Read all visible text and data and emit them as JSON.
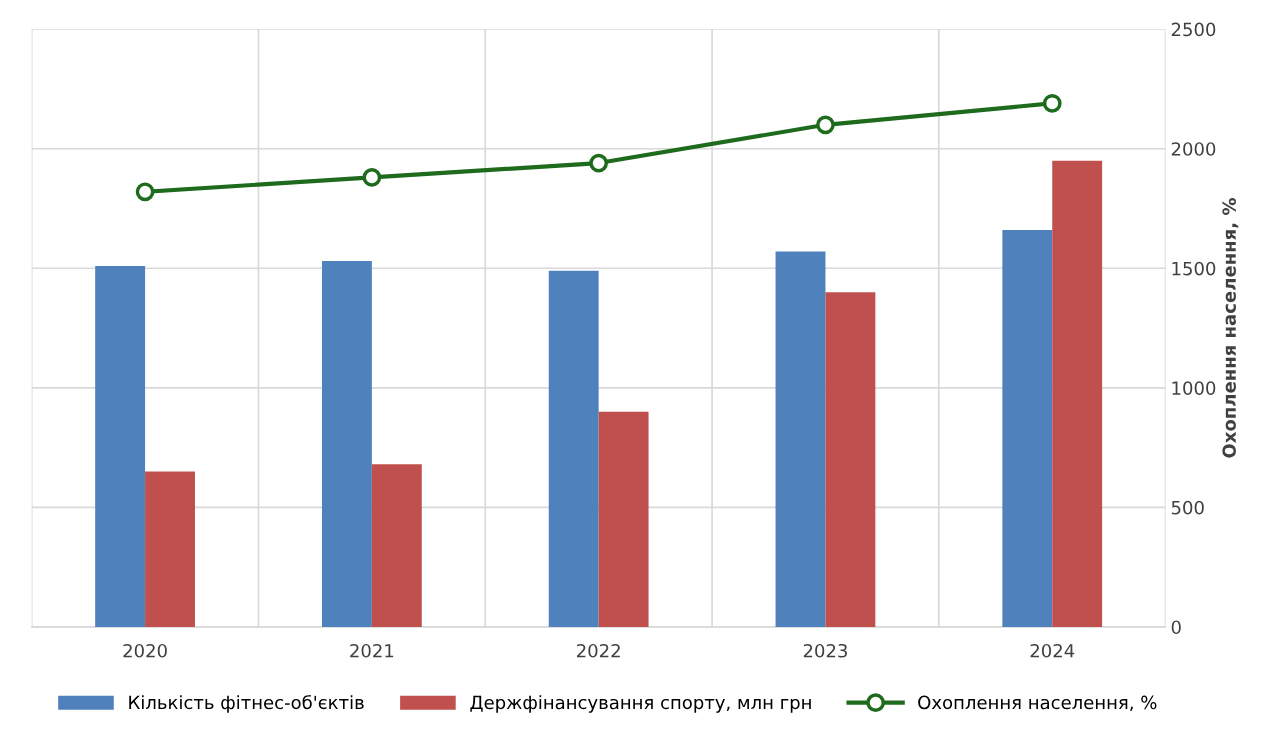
{
  "chart_data": {
    "type": "bar",
    "categories": [
      "2020",
      "2021",
      "2022",
      "2023",
      "2024"
    ],
    "series": [
      {
        "name": "Кількість фітнес-об'єктів",
        "color": "#4f81bd",
        "axis": "y2",
        "values": [
          1510,
          1530,
          1490,
          1570,
          1660
        ]
      },
      {
        "name": "Держфінансування спорту, млн грн",
        "color": "#c0504d",
        "axis": "y2",
        "values": [
          650,
          680,
          900,
          1400,
          1950
        ]
      },
      {
        "name": "Охоплення населення, %",
        "type": "line",
        "color": "#1e6b1e",
        "axis": "y2",
        "marker": "circle",
        "values": [
          1820,
          1880,
          1940,
          2100,
          2190
        ]
      }
    ],
    "y2label": "Охоплення населення, %",
    "y2lim": [
      0,
      2500
    ],
    "y2ticks": [
      0,
      500,
      1000,
      1500,
      2000,
      2500
    ],
    "grid": true,
    "legend": "bottom"
  }
}
